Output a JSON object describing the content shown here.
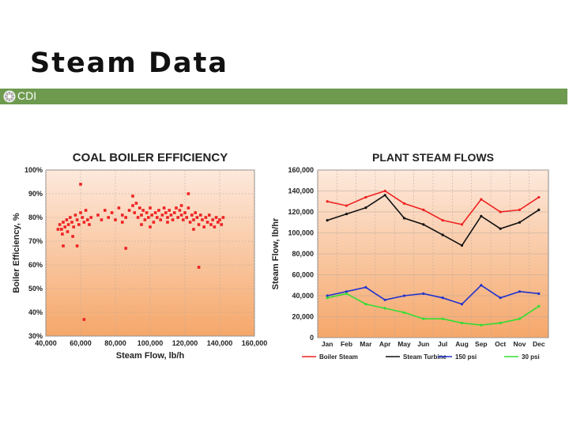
{
  "slide": {
    "title": "Steam Data",
    "logo_text": "CDI",
    "accent_color": "#6e9a4f"
  },
  "chart_data": [
    {
      "type": "scatter",
      "title": "COAL BOILER EFFICIENCY",
      "xlabel": "Steam Flow, lb/h",
      "ylabel": "Boiler Efficiency, %",
      "xlim": [
        40000,
        160000
      ],
      "ylim": [
        30,
        100
      ],
      "x_ticks": [
        40000,
        60000,
        80000,
        100000,
        120000,
        140000,
        160000
      ],
      "x_tick_labels": [
        "40,000",
        "60,000",
        "80,000",
        "100,000",
        "120,000",
        "140,000",
        "160,000"
      ],
      "y_ticks": [
        30,
        40,
        50,
        60,
        70,
        80,
        90,
        100
      ],
      "y_tick_labels": [
        "30%",
        "40%",
        "50%",
        "60%",
        "70%",
        "80%",
        "90%",
        "100%"
      ],
      "grid": true,
      "marker_color": "#ee2222",
      "background_gradient": [
        "#fde9dc",
        "#f5a76a"
      ],
      "points": [
        [
          48000,
          77
        ],
        [
          49000,
          75
        ],
        [
          50000,
          78
        ],
        [
          51000,
          76
        ],
        [
          52000,
          79
        ],
        [
          53000,
          77
        ],
        [
          54000,
          80
        ],
        [
          55000,
          78
        ],
        [
          56000,
          76
        ],
        [
          57000,
          81
        ],
        [
          58000,
          79
        ],
        [
          59000,
          77
        ],
        [
          60000,
          82
        ],
        [
          61000,
          80
        ],
        [
          62000,
          78
        ],
        [
          63000,
          83
        ],
        [
          64000,
          79
        ],
        [
          65000,
          77
        ],
        [
          66000,
          80
        ],
        [
          47000,
          75
        ],
        [
          49500,
          73
        ],
        [
          52500,
          74
        ],
        [
          55500,
          72
        ],
        [
          50000,
          68
        ],
        [
          58000,
          68
        ],
        [
          60000,
          94
        ],
        [
          62000,
          37
        ],
        [
          70000,
          81
        ],
        [
          72000,
          79
        ],
        [
          74000,
          83
        ],
        [
          76000,
          80
        ],
        [
          78000,
          82
        ],
        [
          80000,
          79
        ],
        [
          82000,
          84
        ],
        [
          84000,
          81
        ],
        [
          86000,
          80
        ],
        [
          88000,
          83
        ],
        [
          90000,
          85
        ],
        [
          91000,
          82
        ],
        [
          92000,
          86
        ],
        [
          93000,
          80
        ],
        [
          94000,
          84
        ],
        [
          95000,
          81
        ],
        [
          96000,
          83
        ],
        [
          97000,
          79
        ],
        [
          98000,
          82
        ],
        [
          99000,
          80
        ],
        [
          100000,
          84
        ],
        [
          101000,
          81
        ],
        [
          102000,
          78
        ],
        [
          103000,
          82
        ],
        [
          104000,
          80
        ],
        [
          105000,
          83
        ],
        [
          106000,
          79
        ],
        [
          107000,
          81
        ],
        [
          108000,
          84
        ],
        [
          109000,
          82
        ],
        [
          110000,
          80
        ],
        [
          111000,
          83
        ],
        [
          112000,
          81
        ],
        [
          113000,
          79
        ],
        [
          114000,
          82
        ],
        [
          115000,
          84
        ],
        [
          116000,
          80
        ],
        [
          117000,
          83
        ],
        [
          118000,
          81
        ],
        [
          119000,
          79
        ],
        [
          120000,
          82
        ],
        [
          121000,
          80
        ],
        [
          122000,
          84
        ],
        [
          123000,
          78
        ],
        [
          124000,
          81
        ],
        [
          125000,
          79
        ],
        [
          126000,
          82
        ],
        [
          127000,
          80
        ],
        [
          128000,
          77
        ],
        [
          129000,
          81
        ],
        [
          130000,
          79
        ],
        [
          131000,
          76
        ],
        [
          132000,
          80
        ],
        [
          133000,
          78
        ],
        [
          134000,
          81
        ],
        [
          135000,
          77
        ],
        [
          136000,
          79
        ],
        [
          137000,
          76
        ],
        [
          138000,
          80
        ],
        [
          139000,
          78
        ],
        [
          140000,
          79
        ],
        [
          141000,
          77
        ],
        [
          142000,
          80
        ],
        [
          90000,
          89
        ],
        [
          122000,
          90
        ],
        [
          128000,
          59
        ],
        [
          86000,
          67
        ],
        [
          118000,
          85
        ],
        [
          110000,
          78
        ],
        [
          100000,
          76
        ],
        [
          95000,
          77
        ],
        [
          84000,
          78
        ],
        [
          125000,
          75
        ]
      ]
    },
    {
      "type": "line",
      "title": "PLANT STEAM FLOWS",
      "ylabel": "Steam Flow, lb/hr",
      "ylim": [
        0,
        160000
      ],
      "y_ticks": [
        0,
        20000,
        40000,
        60000,
        80000,
        100000,
        120000,
        140000,
        160000
      ],
      "y_tick_labels": [
        "0",
        "20,000",
        "40,000",
        "60,000",
        "80,000",
        "100,000",
        "120,000",
        "140,000",
        "160,000"
      ],
      "categories": [
        "Jan",
        "Feb",
        "Mar",
        "Apr",
        "May",
        "Jun",
        "Jul",
        "Aug",
        "Sep",
        "Oct",
        "Nov",
        "Dec"
      ],
      "grid": true,
      "background_gradient": [
        "#fde9dc",
        "#f5a76a"
      ],
      "series": [
        {
          "name": "Boiler Steam",
          "color": "#ee2222",
          "values": [
            130000,
            126000,
            134000,
            140000,
            128000,
            122000,
            112000,
            108000,
            132000,
            120000,
            122000,
            134000
          ]
        },
        {
          "name": "Steam Turbine",
          "color": "#111111",
          "values": [
            112000,
            118000,
            124000,
            136000,
            114000,
            108000,
            98000,
            88000,
            116000,
            104000,
            110000,
            122000
          ]
        },
        {
          "name": "150 psi",
          "color": "#2233cc",
          "values": [
            40000,
            44000,
            48000,
            36000,
            40000,
            42000,
            38000,
            32000,
            50000,
            38000,
            44000,
            42000
          ]
        },
        {
          "name": "30 psi",
          "color": "#33dd33",
          "values": [
            38000,
            42000,
            32000,
            28000,
            24000,
            18000,
            18000,
            14000,
            12000,
            14000,
            18000,
            30000
          ]
        }
      ]
    }
  ]
}
